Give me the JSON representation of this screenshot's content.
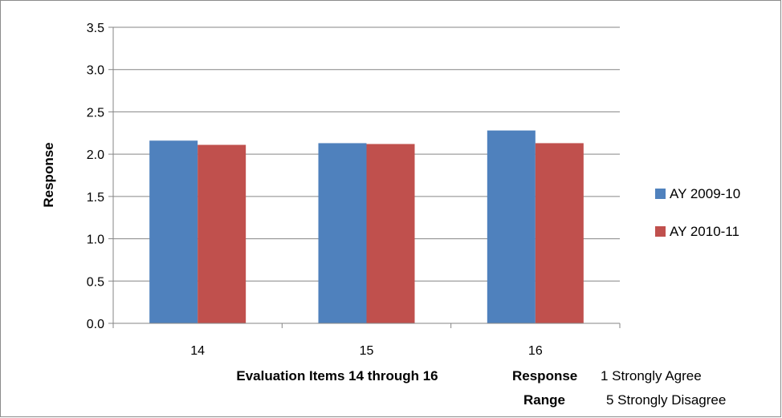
{
  "chart_data": {
    "type": "bar",
    "categories": [
      "14",
      "15",
      "16"
    ],
    "series": [
      {
        "name": "AY 2009-10",
        "values": [
          2.16,
          2.13,
          2.28
        ],
        "color": "#4f81bd"
      },
      {
        "name": "AY 2010-11",
        "values": [
          2.11,
          2.12,
          2.13
        ],
        "color": "#c0504d"
      }
    ],
    "ylim": [
      0,
      3.5
    ],
    "yticks": [
      "0.0",
      "0.5",
      "1.0",
      "1.5",
      "2.0",
      "2.5",
      "3.0",
      "3.5"
    ],
    "ylabel": "Response",
    "xlabel": "Evaluation Items 14 through 16",
    "grid": true,
    "legend_position": "right"
  },
  "response_note": {
    "label_line1": "Response",
    "label_line2": "Range",
    "value_line1": "1 Strongly Agree",
    "value_line2": "5 Strongly Disagree"
  }
}
